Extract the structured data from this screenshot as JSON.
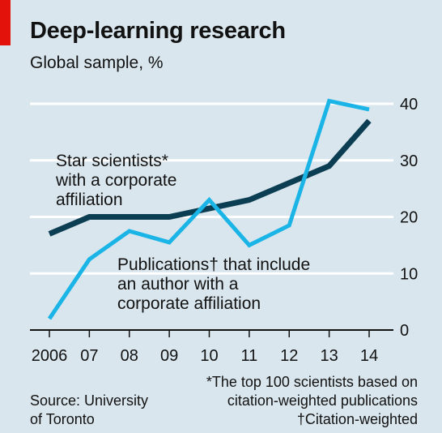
{
  "header": {
    "title": "Deep-learning research",
    "subtitle": "Global sample, %"
  },
  "colors": {
    "background": "#d9e6ed",
    "grid": "#ffffff",
    "star_line": "#0b3e52",
    "pub_line": "#1ab4e6",
    "accent_tag": "#e3120b"
  },
  "chart_data": {
    "type": "line",
    "x": [
      "2006",
      "07",
      "08",
      "09",
      "10",
      "11",
      "12",
      "13",
      "14"
    ],
    "ylim": [
      0,
      40
    ],
    "yticks": [
      0,
      10,
      20,
      30,
      40
    ],
    "ytick_labels": [
      "0",
      "10",
      "20",
      "30",
      "40"
    ],
    "grid": true,
    "series": [
      {
        "name": "Star scientists* with a corporate affiliation",
        "label_lines": [
          "Star scientists*",
          "with a corporate",
          "affiliation"
        ],
        "values": [
          17,
          20,
          20,
          20,
          21.5,
          23,
          26,
          29,
          37
        ]
      },
      {
        "name": "Publications† that include an author with a corporate affiliation",
        "label_lines": [
          "Publications† that include",
          "an author with a",
          "corporate affiliation"
        ],
        "values": [
          2,
          12.5,
          17.5,
          15.5,
          23,
          15,
          18.5,
          40.5,
          39
        ]
      }
    ]
  },
  "footer": {
    "source_lines": [
      "Source: University",
      "of Toronto"
    ],
    "note_lines": [
      "*The top 100 scientists based on",
      "citation-weighted publications",
      "†Citation-weighted"
    ]
  }
}
